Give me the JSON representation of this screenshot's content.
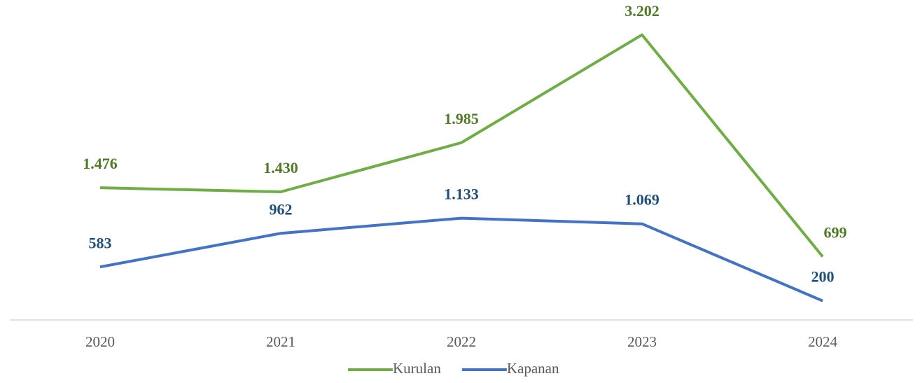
{
  "chart_data": {
    "type": "line",
    "categories": [
      "2020",
      "2021",
      "2022",
      "2023",
      "2024"
    ],
    "series": [
      {
        "name": "Kurulan",
        "color": "#70ad47",
        "label_color": "#4f7a28",
        "values": [
          1476,
          1430,
          1985,
          3202,
          699
        ],
        "value_labels": [
          "1.476",
          "1.430",
          "1.985",
          "3.202",
          "699"
        ]
      },
      {
        "name": "Kapanan",
        "color": "#4472c4",
        "label_color": "#1f4e79",
        "values": [
          583,
          962,
          1133,
          1069,
          200
        ],
        "value_labels": [
          "583",
          "962",
          "1.133",
          "1.069",
          "200"
        ]
      }
    ],
    "ylim": [
      0,
      3500
    ],
    "legend": "bottom"
  }
}
